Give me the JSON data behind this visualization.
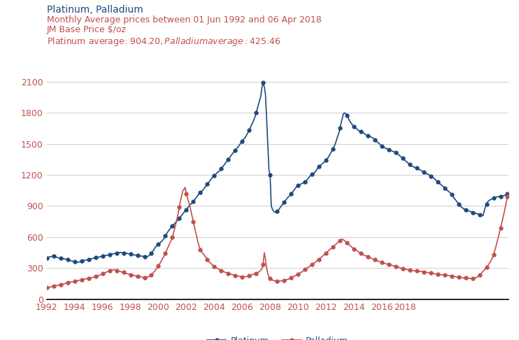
{
  "title_line1": "Platinum, Palladium",
  "title_line2": "Monthly Average prices between 01 Jun 1992 and 06 Apr 2018",
  "title_line3": "JM Base Price $/oz",
  "title_line4": "Platinum average: $904.20, Palladium average: $425.46",
  "title_color1": "#1f497d",
  "title_color2": "#c0504d",
  "platinum_color": "#1f497d",
  "palladium_color": "#c0504d",
  "ylim": [
    0,
    2200
  ],
  "yticks": [
    0,
    300,
    600,
    900,
    1200,
    1500,
    1800,
    2100
  ],
  "legend_platinum": "Platinum",
  "legend_palladium": "Palladium",
  "background_color": "#ffffff",
  "grid_color": "#d3d3d3",
  "platinum_data": [
    396,
    402,
    408,
    410,
    412,
    418,
    415,
    412,
    408,
    403,
    400,
    398,
    398,
    395,
    392,
    388,
    388,
    388,
    385,
    380,
    375,
    370,
    368,
    365,
    363,
    360,
    358,
    356,
    360,
    365,
    370,
    372,
    374,
    376,
    378,
    380,
    382,
    385,
    388,
    392,
    395,
    398,
    400,
    402,
    405,
    408,
    410,
    412,
    415,
    418,
    420,
    423,
    425,
    427,
    429,
    432,
    435,
    438,
    440,
    442,
    445,
    447,
    449,
    451,
    450,
    448,
    447,
    445,
    443,
    442,
    440,
    438,
    435,
    432,
    430,
    428,
    426,
    424,
    422,
    420,
    418,
    416,
    415,
    414,
    413,
    412,
    410,
    415,
    420,
    430,
    445,
    460,
    478,
    495,
    510,
    520,
    530,
    540,
    550,
    560,
    575,
    590,
    610,
    630,
    650,
    665,
    680,
    695,
    710,
    720,
    730,
    742,
    755,
    768,
    780,
    795,
    810,
    825,
    838,
    850,
    865,
    880,
    895,
    910,
    920,
    930,
    945,
    960,
    975,
    990,
    1005,
    1020,
    1030,
    1040,
    1050,
    1065,
    1080,
    1095,
    1110,
    1125,
    1140,
    1155,
    1170,
    1185,
    1195,
    1205,
    1215,
    1225,
    1235,
    1248,
    1260,
    1275,
    1290,
    1305,
    1320,
    1335,
    1350,
    1365,
    1380,
    1395,
    1410,
    1425,
    1438,
    1450,
    1465,
    1480,
    1495,
    1510,
    1525,
    1540,
    1555,
    1570,
    1590,
    1610,
    1630,
    1655,
    1680,
    1705,
    1730,
    1760,
    1800,
    1840,
    1880,
    1920,
    1960,
    2050,
    2090,
    2050,
    1980,
    1750,
    1500,
    1250,
    1200,
    900,
    870,
    850,
    840,
    840,
    850,
    860,
    875,
    890,
    905,
    920,
    935,
    950,
    965,
    980,
    990,
    1000,
    1015,
    1030,
    1045,
    1060,
    1075,
    1090,
    1100,
    1105,
    1110,
    1115,
    1120,
    1125,
    1130,
    1140,
    1155,
    1170,
    1185,
    1195,
    1205,
    1215,
    1220,
    1235,
    1250,
    1265,
    1280,
    1290,
    1300,
    1310,
    1320,
    1330,
    1340,
    1355,
    1370,
    1390,
    1410,
    1430,
    1450,
    1475,
    1500,
    1535,
    1570,
    1600,
    1650,
    1700,
    1745,
    1790,
    1800,
    1790,
    1775,
    1755,
    1730,
    1710,
    1695,
    1680,
    1670,
    1660,
    1650,
    1640,
    1630,
    1625,
    1620,
    1615,
    1610,
    1600,
    1590,
    1585,
    1580,
    1575,
    1570,
    1565,
    1560,
    1550,
    1540,
    1530,
    1520,
    1510,
    1500,
    1490,
    1480,
    1470,
    1465,
    1460,
    1455,
    1450,
    1445,
    1440,
    1435,
    1430,
    1425,
    1420,
    1415,
    1410,
    1400,
    1390,
    1380,
    1370,
    1360,
    1350,
    1340,
    1330,
    1320,
    1310,
    1300,
    1290,
    1285,
    1280,
    1275,
    1270,
    1265,
    1260,
    1255,
    1248,
    1242,
    1235,
    1228,
    1220,
    1215,
    1210,
    1205,
    1198,
    1190,
    1182,
    1175,
    1165,
    1155,
    1145,
    1135,
    1125,
    1115,
    1105,
    1095,
    1085,
    1075,
    1065,
    1055,
    1045,
    1035,
    1025,
    1010,
    995,
    980,
    965,
    950,
    935,
    920,
    905,
    895,
    885,
    875,
    868,
    862,
    858,
    855,
    852,
    848,
    842,
    838,
    835,
    832,
    828,
    825,
    820,
    815,
    812,
    808,
    806,
    850,
    890,
    920,
    940,
    950,
    960,
    965,
    970,
    975,
    980,
    985,
    988,
    990,
    992,
    994,
    996,
    998,
    1000,
    1005,
    1010,
    1018,
    1025
  ],
  "palladium_data": [
    110,
    112,
    115,
    118,
    120,
    123,
    125,
    127,
    130,
    132,
    135,
    138,
    140,
    143,
    146,
    149,
    152,
    156,
    160,
    163,
    165,
    167,
    168,
    170,
    172,
    175,
    178,
    180,
    183,
    185,
    188,
    190,
    192,
    195,
    197,
    200,
    202,
    205,
    208,
    210,
    212,
    215,
    218,
    222,
    226,
    230,
    235,
    240,
    245,
    250,
    255,
    260,
    265,
    268,
    272,
    276,
    280,
    283,
    285,
    282,
    278,
    275,
    272,
    268,
    265,
    262,
    258,
    254,
    250,
    247,
    244,
    240,
    237,
    234,
    232,
    229,
    226,
    224,
    222,
    220,
    218,
    215,
    213,
    211,
    209,
    207,
    210,
    215,
    220,
    228,
    236,
    248,
    260,
    275,
    290,
    305,
    320,
    340,
    360,
    380,
    400,
    420,
    445,
    470,
    495,
    520,
    545,
    570,
    600,
    640,
    685,
    730,
    780,
    830,
    890,
    950,
    1000,
    1050,
    1060,
    1080,
    1020,
    980,
    940,
    900,
    850,
    800,
    750,
    700,
    650,
    600,
    550,
    510,
    480,
    460,
    445,
    430,
    415,
    400,
    385,
    370,
    358,
    346,
    335,
    325,
    315,
    308,
    302,
    296,
    290,
    284,
    278,
    272,
    267,
    262,
    258,
    253,
    249,
    245,
    242,
    239,
    236,
    233,
    230,
    227,
    224,
    222,
    220,
    218,
    217,
    216,
    215,
    216,
    218,
    222,
    226,
    230,
    234,
    238,
    242,
    246,
    250,
    255,
    262,
    270,
    280,
    295,
    335,
    450,
    390,
    300,
    250,
    210,
    200,
    190,
    185,
    180,
    178,
    176,
    175,
    174,
    175,
    176,
    178,
    180,
    182,
    185,
    188,
    191,
    195,
    200,
    206,
    212,
    218,
    224,
    230,
    236,
    242,
    248,
    255,
    262,
    270,
    278,
    286,
    294,
    302,
    310,
    318,
    326,
    334,
    342,
    350,
    358,
    367,
    376,
    386,
    396,
    406,
    416,
    426,
    436,
    445,
    455,
    465,
    475,
    485,
    495,
    505,
    515,
    525,
    535,
    545,
    555,
    565,
    575,
    580,
    575,
    565,
    555,
    545,
    535,
    525,
    515,
    505,
    495,
    485,
    478,
    472,
    465,
    458,
    450,
    443,
    437,
    430,
    425,
    420,
    415,
    410,
    405,
    400,
    395,
    390,
    385,
    380,
    375,
    371,
    367,
    363,
    360,
    356,
    352,
    348,
    345,
    342,
    338,
    335,
    332,
    329,
    326,
    323,
    320,
    317,
    314,
    310,
    306,
    302,
    298,
    295,
    292,
    290,
    288,
    286,
    284,
    282,
    280,
    278,
    276,
    275,
    274,
    273,
    272,
    271,
    270,
    268,
    266,
    264,
    262,
    260,
    258,
    256,
    254,
    252,
    250,
    248,
    246,
    244,
    242,
    240,
    238,
    237,
    236,
    235,
    234,
    233,
    232,
    231,
    230,
    228,
    226,
    224,
    222,
    220,
    218,
    216,
    214,
    212,
    210,
    208,
    207,
    206,
    205,
    204,
    203,
    202,
    201,
    200,
    200,
    201,
    202,
    204,
    208,
    214,
    222,
    232,
    244,
    256,
    268,
    280,
    293,
    307,
    322,
    338,
    356,
    375,
    400,
    430,
    465,
    505,
    548,
    592,
    638,
    685,
    730,
    778,
    828,
    880,
    940,
    990,
    1025
  ],
  "xticklabels": [
    "1992",
    "1994",
    "1996",
    "1998",
    "2000",
    "2002",
    "2004",
    "2006",
    "2008",
    "2010",
    "2012",
    "2014",
    "2016",
    "2018"
  ],
  "xtick_positions": [
    0,
    24,
    48,
    72,
    96,
    120,
    144,
    168,
    192,
    216,
    240,
    264,
    288,
    308
  ]
}
